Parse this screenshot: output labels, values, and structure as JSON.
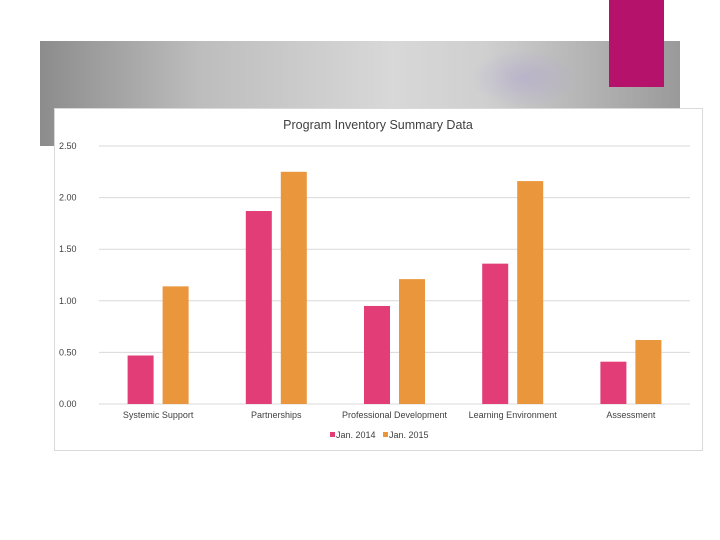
{
  "chart_data": {
    "type": "bar",
    "title": "Program Inventory Summary Data",
    "categories": [
      "Systemic Support",
      "Partnerships",
      "Professional Development",
      "Learning Environment",
      "Assessment"
    ],
    "series": [
      {
        "name": "Jan. 2014",
        "color": "#e23d77",
        "values": [
          0.47,
          1.87,
          0.95,
          1.36,
          0.41
        ]
      },
      {
        "name": "Jan. 2015",
        "color": "#ea963c",
        "values": [
          1.14,
          2.25,
          1.21,
          2.16,
          0.62
        ]
      }
    ],
    "yticks": [
      "0.00",
      "0.50",
      "1.00",
      "1.50",
      "2.00",
      "2.50"
    ],
    "ylim": [
      0,
      2.5
    ],
    "xlabel": "",
    "ylabel": "",
    "grid": true,
    "legend_position": "bottom"
  },
  "colors": {
    "accent": "#b5136b"
  }
}
